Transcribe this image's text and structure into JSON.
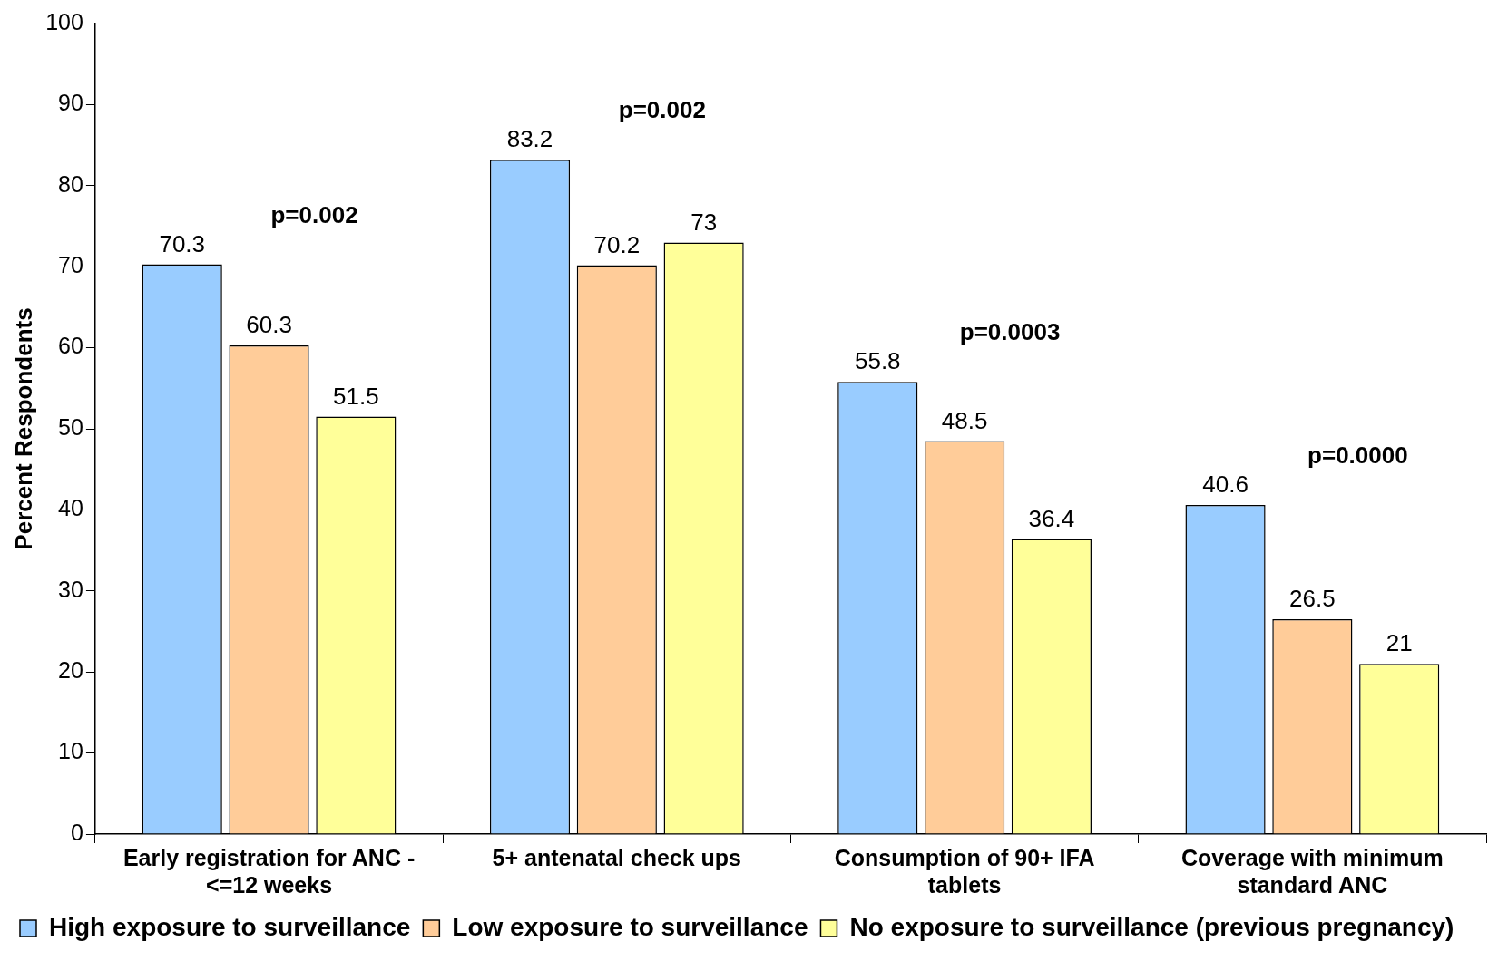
{
  "chart_data": {
    "type": "bar",
    "ylabel": "Percent Respondents",
    "categories": [
      "Early registration for ANC - <=12 weeks",
      "5+ antenatal check ups",
      "Consumption of 90+ IFA tablets",
      "Coverage with minimum standard ANC"
    ],
    "series": [
      {
        "name": "High exposure to surveillance",
        "color": "#99ccff",
        "values": [
          70.3,
          83.2,
          55.8,
          40.6
        ]
      },
      {
        "name": "Low exposure to surveillance",
        "color": "#ffcc99",
        "values": [
          60.3,
          70.2,
          48.5,
          26.5
        ]
      },
      {
        "name": "No exposure to surveillance (previous pregnancy)",
        "color": "#ffff99",
        "values": [
          51.5,
          73,
          36.4,
          21
        ]
      }
    ],
    "ylim": [
      0,
      100
    ],
    "yticks": [
      0,
      10,
      20,
      30,
      40,
      50,
      60,
      70,
      80,
      90,
      100
    ],
    "grid": false,
    "legend": "bottom",
    "data_labels": true,
    "annotations": [
      "p=0.002",
      "p=0.002",
      "p=0.0003",
      "p=0.0000"
    ]
  }
}
